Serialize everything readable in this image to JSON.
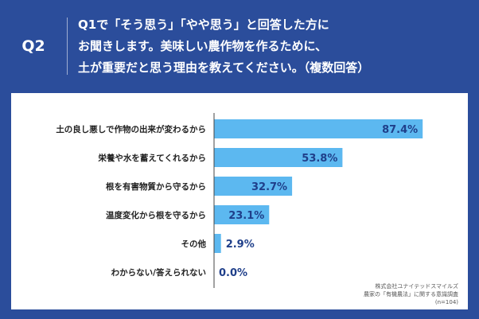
{
  "header": {
    "qnum": "Q2",
    "question_lines": [
      "Q1で「そう思う」「やや思う」と回答した方に",
      "お聞きします。美味しい農作物を作るために、",
      "土が重要だと思う理由を教えてください。（複数回答）"
    ]
  },
  "colors": {
    "header_bg": "#2b4d9b",
    "bar": "#5cb8f0",
    "value_text": "#1f3f8a",
    "axis": "#444444"
  },
  "chart_data": {
    "type": "bar",
    "orientation": "horizontal",
    "categories": [
      "土の良し悪しで作物の出来が変わるから",
      "栄養や水を蓄えてくれるから",
      "根を有害物質から守るから",
      "温度変化から根を守るから",
      "その他",
      "わからない/答えられない"
    ],
    "values": [
      87.4,
      53.8,
      32.7,
      23.1,
      2.9,
      0.0
    ],
    "value_labels": [
      "87.4%",
      "53.8%",
      "32.7%",
      "23.1%",
      "2.9%",
      "0.0%"
    ],
    "xlim": [
      0,
      100
    ],
    "grid": false,
    "legend": "none"
  },
  "source_note": {
    "company": "株式会社ユナイテッドスマイルズ",
    "survey": "農家の「有機農法」に関する意識調査",
    "n": "(n=104)"
  }
}
